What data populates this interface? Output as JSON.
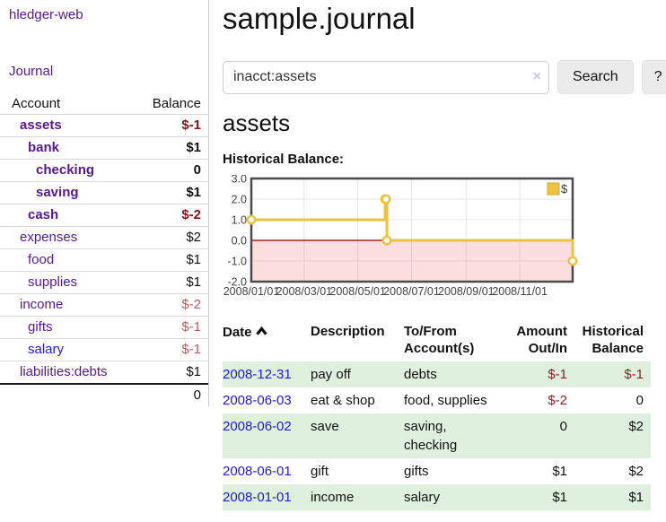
{
  "app": {
    "title": "hledger-web"
  },
  "sidebar": {
    "nav_journal": "Journal",
    "columns": {
      "account": "Account",
      "balance": "Balance"
    },
    "accounts": [
      {
        "name": "assets",
        "balance": "$-1",
        "indent": 1,
        "bold": true,
        "neg": "strong",
        "link": "purple"
      },
      {
        "name": "bank",
        "balance": "$1",
        "indent": 2,
        "bold": true,
        "neg": "",
        "link": "purple"
      },
      {
        "name": "checking",
        "balance": "0",
        "indent": 3,
        "bold": true,
        "neg": "",
        "link": "purple"
      },
      {
        "name": "saving",
        "balance": "$1",
        "indent": 3,
        "bold": true,
        "neg": "",
        "link": "purple"
      },
      {
        "name": "cash",
        "balance": "$-2",
        "indent": 2,
        "bold": true,
        "neg": "strong",
        "link": "purple"
      },
      {
        "name": "expenses",
        "balance": "$2",
        "indent": 1,
        "bold": false,
        "neg": "",
        "link": "purple"
      },
      {
        "name": "food",
        "balance": "$1",
        "indent": 2,
        "bold": false,
        "neg": "",
        "link": "purple"
      },
      {
        "name": "supplies",
        "balance": "$1",
        "indent": 2,
        "bold": false,
        "neg": "",
        "link": "purple"
      },
      {
        "name": "income",
        "balance": "$-2",
        "indent": 1,
        "bold": false,
        "neg": "soft",
        "link": "purple"
      },
      {
        "name": "gifts",
        "balance": "$-1",
        "indent": 2,
        "bold": false,
        "neg": "soft",
        "link": "purple"
      },
      {
        "name": "salary",
        "balance": "$-1",
        "indent": 2,
        "bold": false,
        "neg": "soft",
        "link": "blue"
      },
      {
        "name": "liabilities:debts",
        "balance": "$1",
        "indent": 1,
        "bold": false,
        "neg": "",
        "link": "purple"
      }
    ],
    "total": "0"
  },
  "header": {
    "title": "sample.journal"
  },
  "search": {
    "value": "inacct:assets",
    "clear_icon": "×",
    "button_label": "Search",
    "help_label": "?"
  },
  "account_page": {
    "title": "assets",
    "chart_label": "Historical Balance:"
  },
  "chart_data": {
    "type": "line",
    "step": true,
    "title": "Historical Balance:",
    "x_range": [
      "2008-01-01",
      "2008-12-31"
    ],
    "ylim": [
      -2,
      3
    ],
    "y_ticks": [
      "3.0",
      "2.0",
      "1.0",
      "0.0",
      "-1.0",
      "-2.0"
    ],
    "x_ticks": [
      "2008/01/01",
      "2008/03/01",
      "2008/05/01",
      "2008/07/01",
      "2008/09/01",
      "2008/11/01"
    ],
    "legend": {
      "label": "$",
      "position": "top-right"
    },
    "series": [
      {
        "name": "$",
        "color": "#edc240",
        "points": [
          [
            "2008-01-01",
            1
          ],
          [
            "2008-06-01",
            2
          ],
          [
            "2008-06-02",
            2
          ],
          [
            "2008-06-03",
            0
          ],
          [
            "2008-12-31",
            -1
          ]
        ]
      }
    ],
    "grid": true,
    "zero_line_color": "#800000",
    "negative_region_color": "rgba(248,105,105,0.22)",
    "border_color": "#4a4a4a"
  },
  "register": {
    "headers": [
      "Date",
      "Description",
      "To/From Account(s)",
      "Amount Out/In",
      "Historical Balance"
    ],
    "sort": {
      "column": "Date",
      "direction": "ascending"
    },
    "rows": [
      {
        "date": "2008-12-31",
        "desc": "pay off",
        "accounts": "debts",
        "amount": "$-1",
        "balance": "$-1",
        "amount_neg": true,
        "balance_neg": true
      },
      {
        "date": "2008-06-03",
        "desc": "eat & shop",
        "accounts": "food, supplies",
        "amount": "$-2",
        "balance": "0",
        "amount_neg": true,
        "balance_neg": false
      },
      {
        "date": "2008-06-02",
        "desc": "save",
        "accounts": "saving, checking",
        "amount": "0",
        "balance": "$2",
        "amount_neg": false,
        "balance_neg": false
      },
      {
        "date": "2008-06-01",
        "desc": "gift",
        "accounts": "gifts",
        "amount": "$1",
        "balance": "$2",
        "amount_neg": false,
        "balance_neg": false
      },
      {
        "date": "2008-01-01",
        "desc": "income",
        "accounts": "salary",
        "amount": "$1",
        "balance": "$1",
        "amount_neg": false,
        "balance_neg": false
      }
    ]
  }
}
